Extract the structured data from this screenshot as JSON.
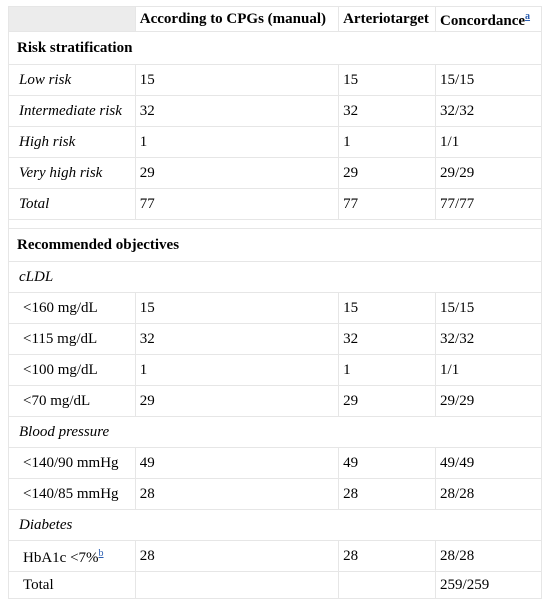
{
  "header": {
    "col1": "",
    "col2": "According to CPGs (manual)",
    "col3": "Arteriotarget",
    "col4": "Concordance",
    "col4_note": "a"
  },
  "risk": {
    "title": "Risk stratification",
    "rows": [
      {
        "label": "Low risk",
        "cpg": "15",
        "arterio": "15",
        "conc": "15/15"
      },
      {
        "label": "Intermediate risk",
        "cpg": "32",
        "arterio": "32",
        "conc": "32/32"
      },
      {
        "label": "High risk",
        "cpg": "1",
        "arterio": "1",
        "conc": "1/1"
      },
      {
        "label": "Very high risk",
        "cpg": "29",
        "arterio": "29",
        "conc": "29/29"
      },
      {
        "label": "Total",
        "cpg": "77",
        "arterio": "77",
        "conc": "77/77"
      }
    ]
  },
  "objectives": {
    "title": "Recommended objectives",
    "cldl": {
      "label": "cLDL",
      "rows": [
        {
          "label": "<160 mg/dL",
          "cpg": "15",
          "arterio": "15",
          "conc": "15/15"
        },
        {
          "label": "<115 mg/dL",
          "cpg": "32",
          "arterio": "32",
          "conc": "32/32"
        },
        {
          "label": "<100 mg/dL",
          "cpg": "1",
          "arterio": "1",
          "conc": "1/1"
        },
        {
          "label": "<70 mg/dL",
          "cpg": "29",
          "arterio": "29",
          "conc": "29/29"
        }
      ]
    },
    "bp": {
      "label": "Blood pressure",
      "rows": [
        {
          "label": "<140/90 mmHg",
          "cpg": "49",
          "arterio": "49",
          "conc": "49/49"
        },
        {
          "label": "<140/85 mmHg",
          "cpg": "28",
          "arterio": "28",
          "conc": "28/28"
        }
      ]
    },
    "diabetes": {
      "label": "Diabetes",
      "hba1c": {
        "label": "HbA1c <7%",
        "note": "b",
        "cpg": "28",
        "arterio": "28",
        "conc": "28/28"
      }
    },
    "total": {
      "label": "Total",
      "conc": "259/259"
    }
  },
  "colors": {
    "header_bg": "#ececec",
    "link": "#2a5db0",
    "border": "#e6e6e6"
  }
}
